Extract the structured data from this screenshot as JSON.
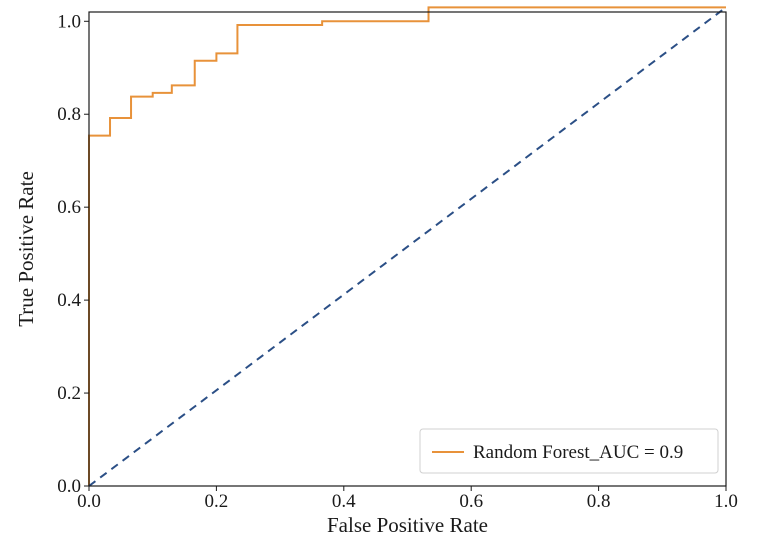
{
  "chart_data": {
    "type": "line",
    "title": "",
    "xlabel": "False Positive Rate",
    "ylabel": "True Positive Rate",
    "xlim": [
      0.0,
      1.0
    ],
    "ylim": [
      0.0,
      1.02
    ],
    "x_ticks": [
      "0.0",
      "0.2",
      "0.4",
      "0.6",
      "0.8",
      "1.0"
    ],
    "y_ticks": [
      "0.0",
      "0.2",
      "0.4",
      "0.6",
      "0.8",
      "1.0"
    ],
    "grid": false,
    "legend_position": "lower-right",
    "series": [
      {
        "name": "Random Forest_AUC = 0.9",
        "color": "#e8923a",
        "style": "solid",
        "x": [
          0.0,
          0.0,
          0.0,
          0.033,
          0.033,
          0.066,
          0.066,
          0.1,
          0.1,
          0.13,
          0.13,
          0.166,
          0.166,
          0.2,
          0.2,
          0.233,
          0.233,
          0.366,
          0.366,
          0.533,
          0.533,
          1.0
        ],
        "y": [
          0.0,
          0.0,
          0.754,
          0.754,
          0.792,
          0.792,
          0.838,
          0.838,
          0.846,
          0.846,
          0.862,
          0.862,
          0.915,
          0.915,
          0.931,
          0.931,
          0.992,
          0.992,
          1.0,
          1.0,
          1.03,
          1.03
        ]
      },
      {
        "name": "",
        "color": "#2b4f86",
        "style": "dashed",
        "x": [
          0.0,
          1.0
        ],
        "y": [
          0.0,
          1.03
        ]
      }
    ]
  }
}
